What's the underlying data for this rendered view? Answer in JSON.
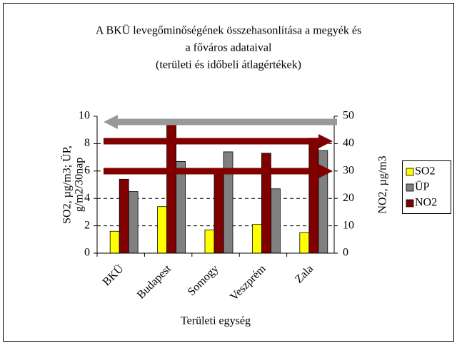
{
  "chart_data": {
    "type": "bar",
    "title_lines": [
      "A BKÜ levegőminőségének összehasonlítása a megyék és",
      "a főváros adataival",
      "(területi és időbeli átlagértékek)"
    ],
    "ylabel_lines": [
      "SO2, µg/m3; ÜP,",
      "g/m2/30nap"
    ],
    "y2label": "NO2, µg/m3",
    "xlabel": "Területi egység",
    "categories": [
      "BKÜ",
      "Budapest",
      "Somogy",
      "Veszprém",
      "Zala"
    ],
    "series": [
      {
        "name": "SO2",
        "color": "#ffff00",
        "values": [
          1.6,
          3.4,
          1.7,
          2.1,
          1.5
        ]
      },
      {
        "name": "ÜP",
        "color": "#808080",
        "values": [
          4.5,
          6.7,
          7.4,
          4.7,
          7.5
        ]
      },
      {
        "name": "NO2",
        "color": "#800000",
        "axis": "y2",
        "values": [
          27,
          47.5,
          29,
          36.5,
          42
        ]
      }
    ],
    "ylim": [
      0,
      10
    ],
    "yticks": [
      0,
      2,
      4,
      6,
      8,
      10
    ],
    "y2lim": [
      0,
      50
    ],
    "y2ticks": [
      0,
      10,
      20,
      30,
      40,
      50
    ],
    "grid": true,
    "legend": "right"
  }
}
